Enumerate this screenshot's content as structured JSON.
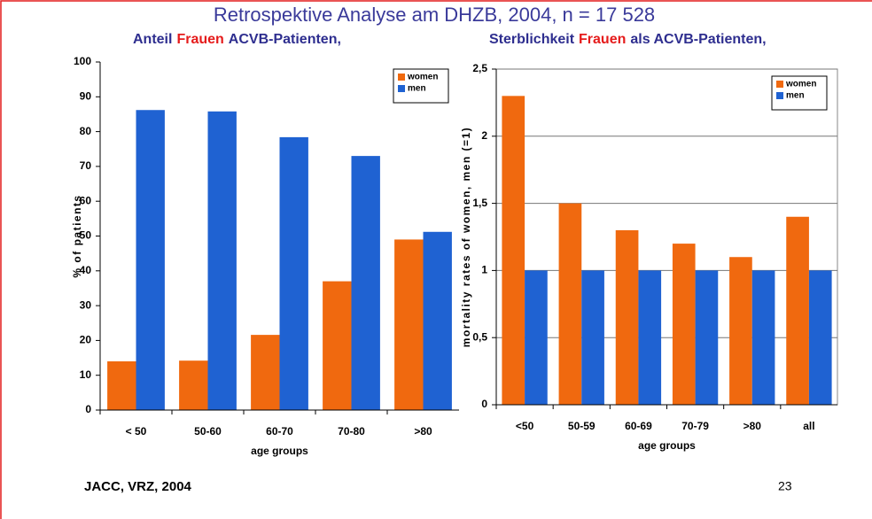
{
  "title": "Retrospektive Analyse am DHZB, 2004, n = 17 528",
  "footer": "JACC, VRZ, 2004",
  "page_number": "23",
  "chart_data": [
    {
      "type": "bar",
      "subtitle": [
        "Anteil",
        "Frauen",
        "ACVB-Patienten,"
      ],
      "categories": [
        "< 50",
        "50-60",
        "60-70",
        "70-80",
        ">80"
      ],
      "series": [
        {
          "name": "women",
          "color": "#f0690f",
          "values": [
            14,
            14.2,
            21.6,
            37,
            49
          ]
        },
        {
          "name": "men",
          "color": "#1f62d2",
          "values": [
            86.2,
            85.8,
            78.4,
            73,
            51.2
          ]
        }
      ],
      "ylim": [
        0,
        100
      ],
      "yticks": [
        0,
        10,
        20,
        30,
        40,
        50,
        60,
        70,
        80,
        90,
        100
      ],
      "ylabel": "% of patients",
      "xlabel": "age groups",
      "grid": false,
      "legend": "upper right"
    },
    {
      "type": "bar",
      "subtitle": [
        "Sterblichkeit",
        "Frauen",
        "als ACVB-Patienten,"
      ],
      "categories": [
        "<50",
        "50-59",
        "60-69",
        "70-79",
        ">80",
        "all"
      ],
      "series": [
        {
          "name": "women",
          "color": "#f0690f",
          "values": [
            2.3,
            1.5,
            1.3,
            1.2,
            1.1,
            1.4
          ]
        },
        {
          "name": "men",
          "color": "#1f62d2",
          "values": [
            1,
            1,
            1,
            1,
            1,
            1
          ]
        }
      ],
      "ylim": [
        0,
        2.5
      ],
      "yticks": [
        0,
        {
          "value": 0.5,
          "label": "0,5"
        },
        1,
        {
          "value": 1.5,
          "label": "1,5"
        },
        2,
        {
          "value": 2.5,
          "label": "2,5"
        }
      ],
      "ylabel": "mortality rates of women, men (=1)",
      "xlabel": "age groups",
      "grid": true,
      "legend": "upper right"
    }
  ]
}
